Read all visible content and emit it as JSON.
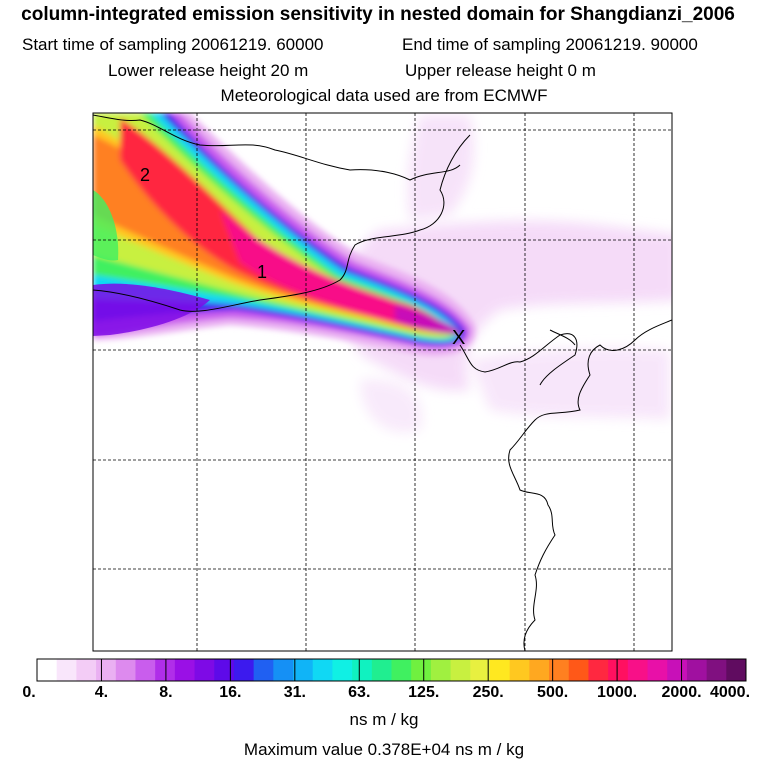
{
  "header": {
    "title": "column-integrated emission sensitivity in nested domain for Shangdianzi_2006",
    "start_time": "Start time of sampling 20061219. 60000",
    "end_time": "End time of sampling 20061219. 90000",
    "lower_height": "Lower release height   20 m",
    "upper_height": "Upper release height    0 m",
    "met_data": "Meteorological data used are from ECMWF"
  },
  "map": {
    "contour_labels": [
      "2",
      "1"
    ],
    "release_marker": "X",
    "colors": {
      "coast": "#000000",
      "grid": "#000000",
      "background": "#ffffff"
    }
  },
  "colorbar": {
    "ticks": [
      "0.",
      "4.",
      "8.",
      "16.",
      "31.",
      "63.",
      "125.",
      "250.",
      "500.",
      "1000.",
      "2000.",
      "4000."
    ],
    "colors": [
      "#ffffff",
      "#f9e6fb",
      "#f3ccf6",
      "#eab0f2",
      "#dd8aee",
      "#c95ded",
      "#b02ee9",
      "#9a10e6",
      "#7e0ae6",
      "#5e0ae9",
      "#3c1aee",
      "#2060f2",
      "#1590f5",
      "#10b4f7",
      "#10d8f4",
      "#10f0e4",
      "#10f2c0",
      "#20ee90",
      "#40f060",
      "#70f040",
      "#a0f040",
      "#c8f040",
      "#e8f040",
      "#ffe820",
      "#ffc820",
      "#ffa820",
      "#ff8020",
      "#ff5818",
      "#ff2840",
      "#ff1060",
      "#f81088",
      "#e810a8",
      "#c810b8",
      "#a010a0",
      "#801080",
      "#600c60"
    ],
    "units": "ns m / kg",
    "max_value": "Maximum value  0.378E+04 ns m / kg"
  }
}
